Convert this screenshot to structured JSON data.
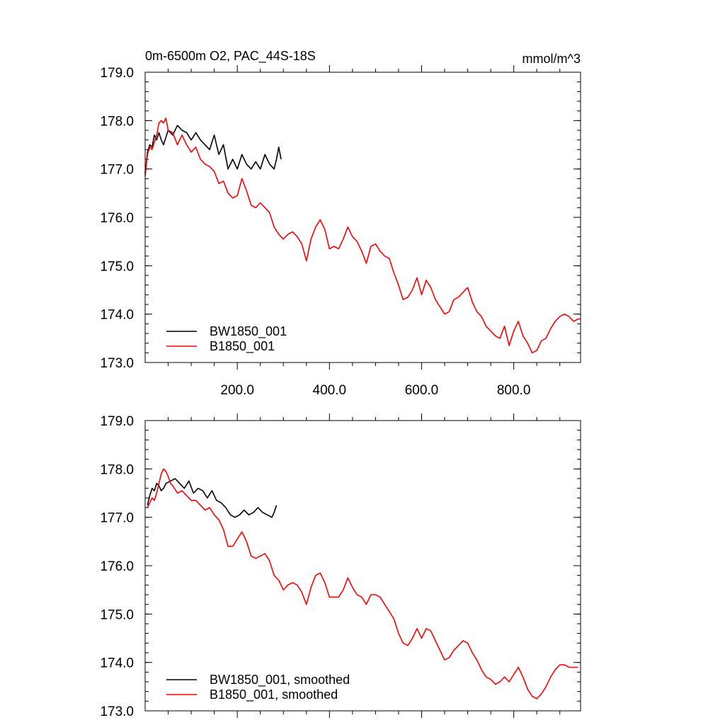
{
  "chart_data": [
    {
      "type": "line",
      "title": "0m-6500m O2, PAC_44S-18S",
      "units": "mmol/m^3",
      "xlim": [
        0,
        945
      ],
      "ylim": [
        173.0,
        179.0
      ],
      "x_ticks": [
        200,
        400,
        600,
        800
      ],
      "x_tick_labels": [
        "200.0",
        "400.0",
        "600.0",
        "800.0"
      ],
      "y_ticks": [
        173,
        174,
        175,
        176,
        177,
        178,
        179
      ],
      "y_tick_labels": [
        "173.0",
        "174.0",
        "175.0",
        "176.0",
        "177.0",
        "178.0",
        "179.0"
      ],
      "legend_position": "bottom-left",
      "series": [
        {
          "name": "BW1850_001",
          "color": "#000000",
          "x": [
            0,
            5,
            10,
            15,
            20,
            25,
            30,
            35,
            40,
            50,
            60,
            70,
            80,
            90,
            100,
            110,
            120,
            130,
            140,
            150,
            160,
            170,
            180,
            190,
            200,
            210,
            220,
            230,
            240,
            250,
            260,
            270,
            280,
            285,
            290,
            295
          ],
          "y": [
            176.9,
            177.35,
            177.5,
            177.45,
            177.7,
            177.6,
            177.75,
            177.6,
            177.5,
            177.8,
            177.7,
            177.9,
            177.8,
            177.75,
            177.6,
            177.75,
            177.6,
            177.5,
            177.4,
            177.7,
            177.3,
            177.5,
            177.0,
            177.2,
            177.0,
            177.3,
            177.1,
            177.0,
            177.15,
            177.0,
            177.3,
            177.1,
            177.0,
            177.2,
            177.45,
            177.2
          ]
        },
        {
          "name": "B1850_001",
          "color": "#ff0000",
          "x": [
            0,
            5,
            10,
            15,
            20,
            25,
            30,
            35,
            40,
            45,
            50,
            60,
            70,
            80,
            90,
            100,
            110,
            120,
            130,
            140,
            150,
            160,
            170,
            180,
            190,
            200,
            210,
            220,
            230,
            240,
            250,
            260,
            270,
            280,
            290,
            300,
            310,
            320,
            330,
            340,
            350,
            360,
            370,
            380,
            390,
            400,
            410,
            420,
            430,
            440,
            450,
            460,
            470,
            480,
            490,
            500,
            510,
            520,
            530,
            540,
            550,
            560,
            570,
            580,
            590,
            600,
            610,
            620,
            630,
            640,
            650,
            660,
            670,
            680,
            690,
            700,
            710,
            720,
            730,
            740,
            750,
            760,
            770,
            780,
            790,
            800,
            810,
            820,
            830,
            840,
            850,
            860,
            870,
            880,
            890,
            900,
            910,
            920,
            930,
            940,
            945
          ],
          "y": [
            176.85,
            177.3,
            177.45,
            177.4,
            177.55,
            177.7,
            177.95,
            178.0,
            177.95,
            178.05,
            177.8,
            177.75,
            177.5,
            177.7,
            177.5,
            177.35,
            177.45,
            177.2,
            177.1,
            177.05,
            176.95,
            176.7,
            176.75,
            176.5,
            176.4,
            176.45,
            176.8,
            176.55,
            176.25,
            176.2,
            176.3,
            176.2,
            176.1,
            175.8,
            175.65,
            175.55,
            175.65,
            175.7,
            175.6,
            175.45,
            175.1,
            175.55,
            175.8,
            175.95,
            175.75,
            175.35,
            175.4,
            175.35,
            175.55,
            175.8,
            175.6,
            175.5,
            175.3,
            175.05,
            175.4,
            175.45,
            175.3,
            175.2,
            175.15,
            174.85,
            174.6,
            174.3,
            174.35,
            174.5,
            174.75,
            174.4,
            174.7,
            174.55,
            174.3,
            174.15,
            174.0,
            174.05,
            174.3,
            174.35,
            174.45,
            174.55,
            174.25,
            174.05,
            173.95,
            173.75,
            173.65,
            173.55,
            173.5,
            173.75,
            173.35,
            173.65,
            173.85,
            173.55,
            173.4,
            173.2,
            173.25,
            173.45,
            173.5,
            173.7,
            173.85,
            173.95,
            174.0,
            173.95,
            173.85,
            173.9,
            173.9
          ]
        }
      ]
    },
    {
      "type": "line",
      "xlim": [
        0,
        945
      ],
      "ylim": [
        173.0,
        179.0
      ],
      "x_ticks": [
        200,
        400,
        600,
        800
      ],
      "y_ticks": [
        173,
        174,
        175,
        176,
        177,
        178,
        179
      ],
      "y_tick_labels": [
        "173.0",
        "174.0",
        "175.0",
        "176.0",
        "177.0",
        "178.0",
        "179.0"
      ],
      "legend_position": "bottom-left",
      "series": [
        {
          "name": "BW1850_001, smoothed",
          "color": "#000000",
          "x": [
            5,
            10,
            15,
            20,
            25,
            30,
            35,
            40,
            45,
            55,
            65,
            75,
            85,
            95,
            105,
            115,
            125,
            135,
            145,
            155,
            165,
            175,
            185,
            195,
            205,
            215,
            225,
            235,
            245,
            255,
            265,
            275,
            280,
            285
          ],
          "y": [
            177.25,
            177.45,
            177.6,
            177.55,
            177.7,
            177.65,
            177.55,
            177.6,
            177.7,
            177.75,
            177.8,
            177.7,
            177.6,
            177.75,
            177.5,
            177.6,
            177.55,
            177.4,
            177.55,
            177.35,
            177.3,
            177.2,
            177.05,
            177.0,
            177.05,
            177.15,
            177.05,
            177.1,
            177.2,
            177.1,
            177.05,
            177.0,
            177.1,
            177.25
          ]
        },
        {
          "name": "B1850_001, smoothed",
          "color": "#ff0000",
          "x": [
            5,
            10,
            15,
            20,
            25,
            30,
            35,
            40,
            45,
            50,
            55,
            60,
            70,
            80,
            90,
            100,
            110,
            120,
            130,
            140,
            150,
            160,
            170,
            180,
            190,
            200,
            210,
            220,
            230,
            240,
            250,
            260,
            270,
            280,
            290,
            300,
            310,
            320,
            330,
            340,
            350,
            360,
            370,
            380,
            390,
            400,
            410,
            420,
            430,
            440,
            450,
            460,
            470,
            480,
            490,
            500,
            510,
            520,
            530,
            540,
            550,
            560,
            570,
            580,
            590,
            600,
            610,
            620,
            630,
            640,
            650,
            660,
            670,
            680,
            690,
            700,
            710,
            720,
            730,
            740,
            750,
            760,
            770,
            780,
            790,
            800,
            810,
            820,
            830,
            840,
            850,
            860,
            870,
            880,
            890,
            900,
            910,
            920,
            930,
            940
          ],
          "y": [
            177.2,
            177.3,
            177.4,
            177.35,
            177.5,
            177.7,
            177.9,
            178.0,
            177.95,
            177.85,
            177.7,
            177.65,
            177.5,
            177.55,
            177.45,
            177.35,
            177.35,
            177.25,
            177.15,
            177.2,
            177.05,
            176.95,
            176.75,
            176.4,
            176.4,
            176.55,
            176.7,
            176.5,
            176.2,
            176.15,
            176.2,
            176.25,
            176.1,
            175.8,
            175.7,
            175.5,
            175.6,
            175.65,
            175.6,
            175.45,
            175.2,
            175.55,
            175.8,
            175.85,
            175.65,
            175.35,
            175.35,
            175.35,
            175.5,
            175.75,
            175.55,
            175.4,
            175.35,
            175.2,
            175.4,
            175.4,
            175.35,
            175.2,
            175.05,
            174.9,
            174.6,
            174.4,
            174.35,
            174.5,
            174.7,
            174.5,
            174.7,
            174.65,
            174.45,
            174.25,
            174.05,
            174.1,
            174.25,
            174.35,
            174.45,
            174.4,
            174.2,
            174.05,
            173.85,
            173.7,
            173.65,
            173.55,
            173.6,
            173.7,
            173.6,
            173.75,
            173.9,
            173.7,
            173.45,
            173.3,
            173.25,
            173.35,
            173.5,
            173.7,
            173.85,
            173.95,
            173.95,
            173.9,
            173.9,
            173.9
          ]
        }
      ]
    }
  ]
}
